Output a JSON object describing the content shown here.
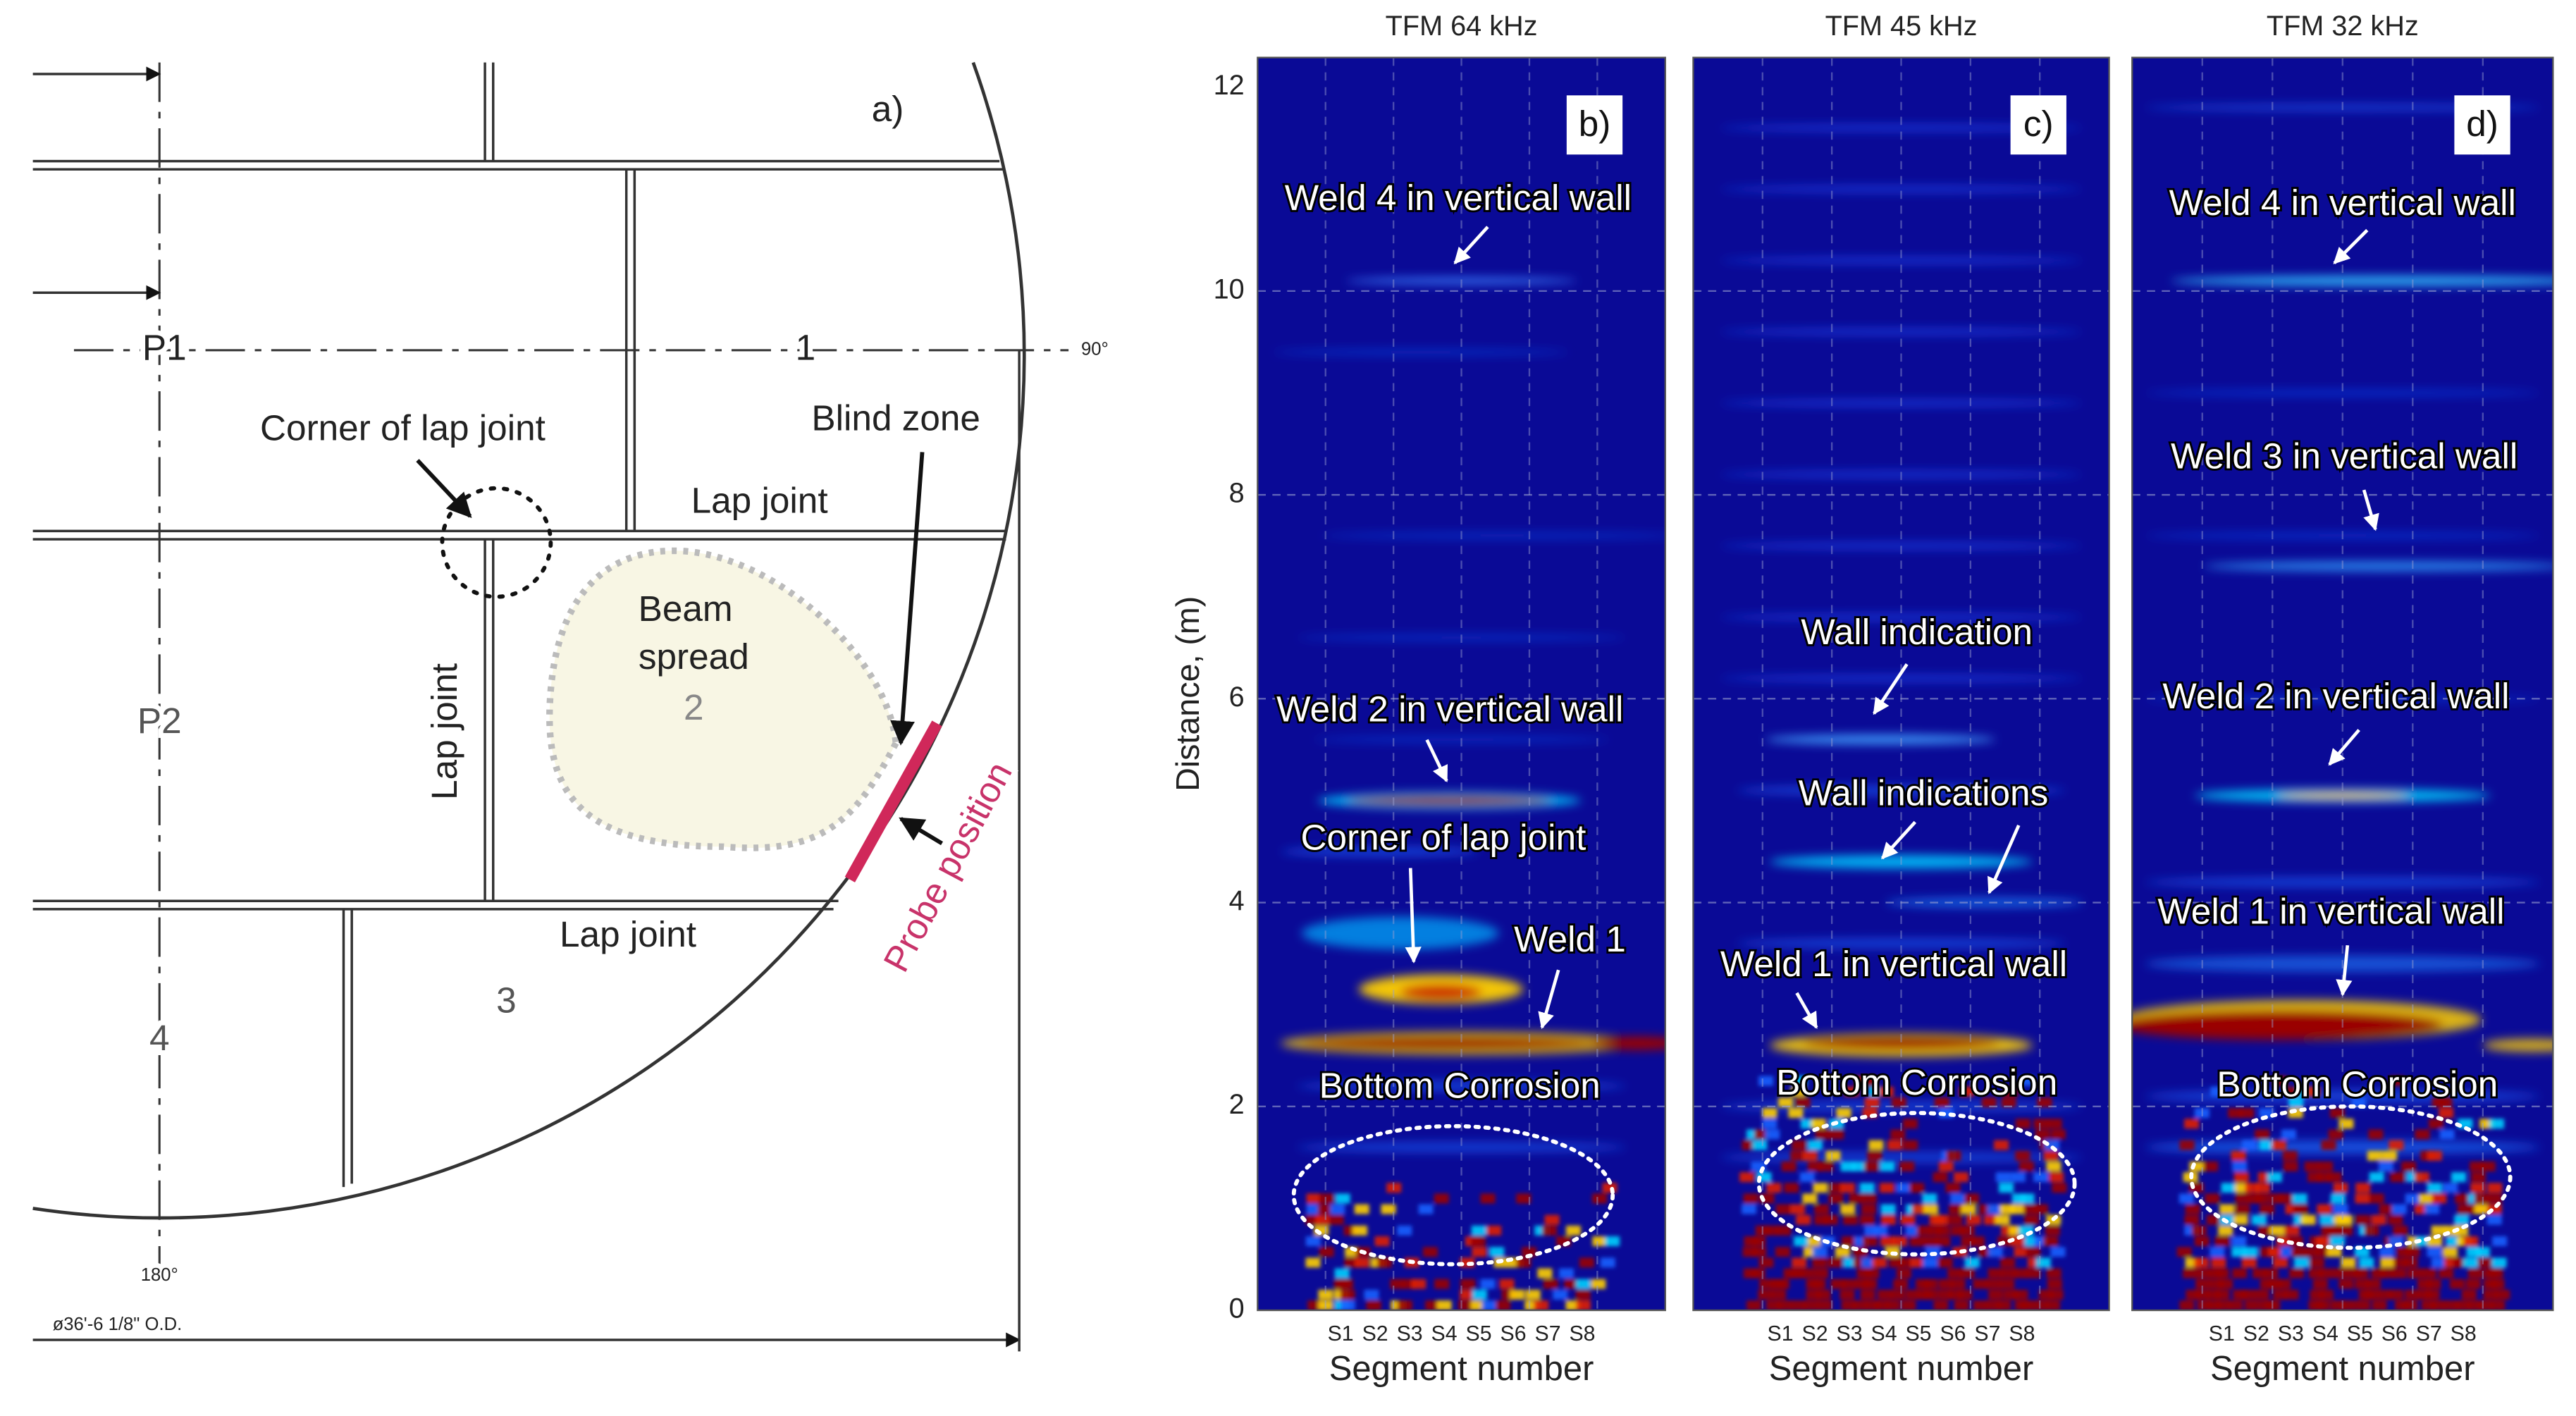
{
  "panel_a": {
    "letter": "a)",
    "p1": "P1",
    "zone_1": "1",
    "angle_90": "90°",
    "corner_of_lap_joint": "Corner of lap joint",
    "blind_zone": "Blind zone",
    "lap_joint_top": "Lap joint",
    "lap_joint_vertical": "Lap joint",
    "beam_spread": [
      "Beam",
      "spread"
    ],
    "zone_2": "2",
    "p2": "P2",
    "probe_position": "Probe position",
    "lap_joint_bottom": "Lap joint",
    "zone_3": "3",
    "zone_4": "4",
    "angle_180": "180°",
    "diameter": "ø36'-6 1/8\" O.D."
  },
  "y_axis": {
    "label": "Distance, (m)",
    "lim": [
      0,
      12
    ],
    "ticks": [
      0,
      2,
      4,
      6,
      8,
      10,
      12
    ]
  },
  "tfm_panels": [
    {
      "title": "TFM 64 kHz",
      "letter": "b)",
      "annotations": [
        "Weld 4 in vertical wall",
        "Weld 2 in vertical wall",
        "Corner of lap joint",
        "Weld 1",
        "Bottom Corrosion"
      ],
      "x_tick_labels": [
        "S1",
        "S2",
        "S3",
        "S4",
        "S5",
        "S6",
        "S7",
        "S8"
      ],
      "x_label": "Segment number"
    },
    {
      "title": "TFM 45 kHz",
      "letter": "c)",
      "annotations": [
        "Wall indication",
        "Wall indications",
        "Weld 1 in vertical wall",
        "Bottom Corrosion"
      ],
      "x_tick_labels": [
        "S1",
        "S2",
        "S3",
        "S4",
        "S5",
        "S6",
        "S7",
        "S8"
      ],
      "x_label": "Segment number"
    },
    {
      "title": "TFM 32 kHz",
      "letter": "d)",
      "annotations": [
        "Weld 4 in vertical wall",
        "Weld 3 in vertical wall",
        "Weld 2 in vertical wall",
        "Weld 1 in vertical wall",
        "Bottom Corrosion"
      ],
      "x_tick_labels": [
        "S1",
        "S2",
        "S3",
        "S4",
        "S5",
        "S6",
        "S7",
        "S8"
      ],
      "x_label": "Segment number"
    }
  ]
}
